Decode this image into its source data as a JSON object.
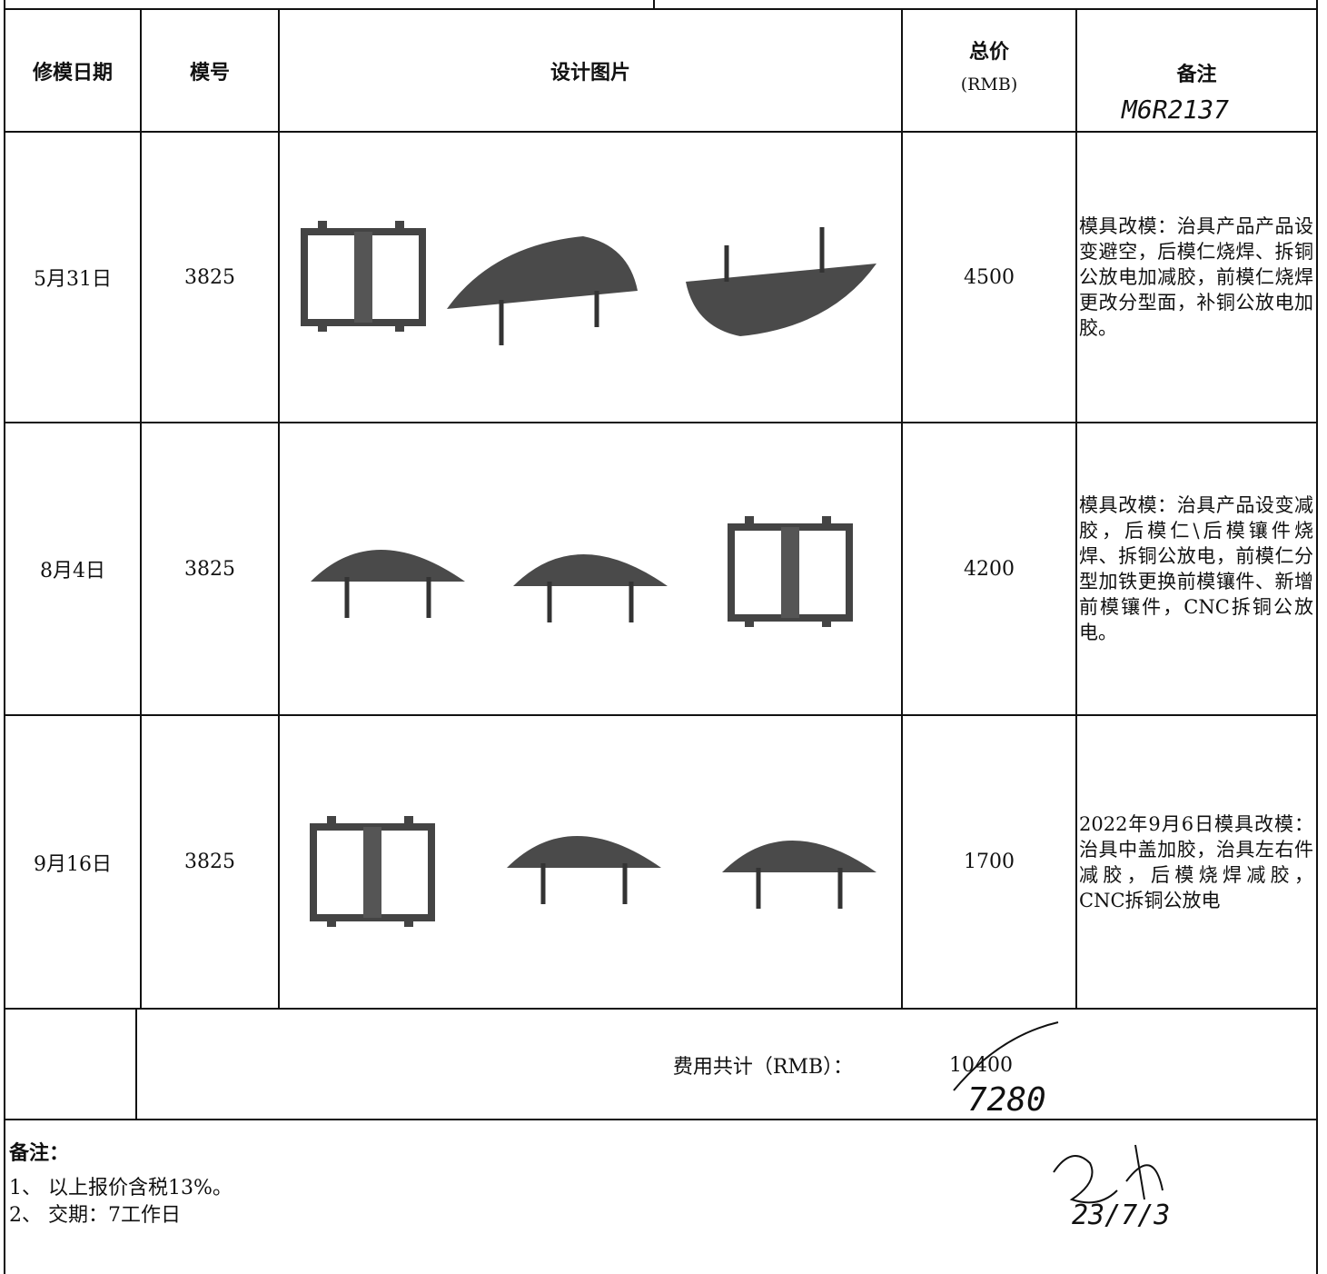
{
  "header": {
    "date": "修模日期",
    "mold_no": "模号",
    "design": "设计图片",
    "total_price": "总价",
    "currency": "(RMB)",
    "remarks": "备注",
    "remarks_handwritten": "M6R2137"
  },
  "rows": [
    {
      "date": "5月31日",
      "mold_no": "3825",
      "total_price": 4500,
      "remarks": "模具改模：治具产品产品设变避空，后模仁烧焊、拆铜公放电加减胶，前模仁烧焊更改分型面，补铜公放电加胶。"
    },
    {
      "date": "8月4日",
      "mold_no": "3825",
      "total_price": 4200,
      "remarks": "模具改模：治具产品设变减胶，后模仁\\后模镶件烧焊、拆铜公放电，前模仁分型加铁更换前模镶件、新增前模镶件，CNC拆铜公放电。"
    },
    {
      "date": "9月16日",
      "mold_no": "3825",
      "total_price": 1700,
      "remarks": "2022年9月6日模具改模：治具中盖加胶，治具左右件减胶，后模烧焊减胶，CNC拆铜公放电"
    }
  ],
  "total": {
    "label": "费用共计（RMB）：",
    "value": 10400,
    "handwritten_value": 7280
  },
  "notes": {
    "title": "备注：",
    "items": [
      "1、 以上报价含税13%。",
      "2、 交期：7工作日"
    ]
  },
  "handwritten_date": "23/7/3"
}
